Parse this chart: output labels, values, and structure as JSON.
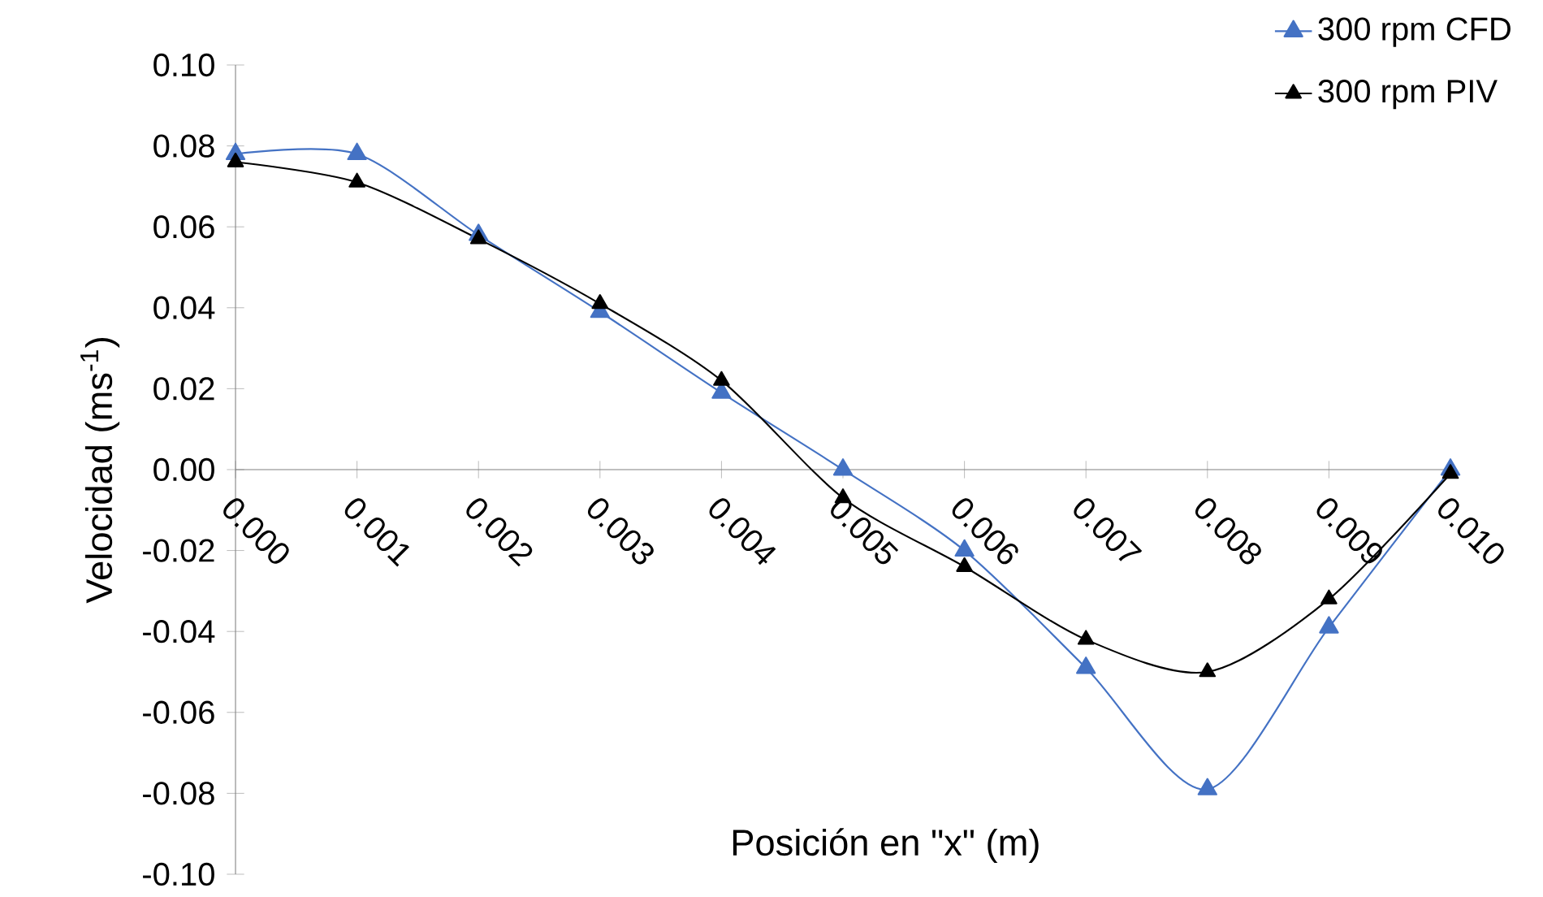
{
  "chart_data": {
    "type": "line",
    "xlabel": "Posición en \"x\" (m)",
    "ylabel": "Velocidad (ms$^{-1}$)",
    "x": [
      0.0,
      0.001,
      0.002,
      0.003,
      0.004,
      0.005,
      0.006,
      0.007,
      0.008,
      0.009,
      0.01
    ],
    "series": [
      {
        "name": "300 rpm CFD",
        "color": "#4472c4",
        "values": [
          0.078,
          0.078,
          0.058,
          0.039,
          0.019,
          0.0,
          -0.02,
          -0.049,
          -0.079,
          -0.039,
          0.0
        ]
      },
      {
        "name": "300 rpm PIV",
        "color": "#000000",
        "values": [
          0.076,
          0.071,
          0.057,
          0.041,
          0.022,
          -0.007,
          -0.024,
          -0.042,
          -0.05,
          -0.032,
          -0.001
        ]
      }
    ],
    "xlim": [
      0.0,
      0.01
    ],
    "xticks": [
      {
        "value": 0.0,
        "label": "0.000"
      },
      {
        "value": 0.001,
        "label": "0.001"
      },
      {
        "value": 0.002,
        "label": "0.002"
      },
      {
        "value": 0.003,
        "label": "0.003"
      },
      {
        "value": 0.004,
        "label": "0.004"
      },
      {
        "value": 0.005,
        "label": "0.005"
      },
      {
        "value": 0.006,
        "label": "0.006"
      },
      {
        "value": 0.007,
        "label": "0.007"
      },
      {
        "value": 0.008,
        "label": "0.008"
      },
      {
        "value": 0.009,
        "label": "0.009"
      },
      {
        "value": 0.01,
        "label": "0.010"
      }
    ],
    "ylim": [
      -0.1,
      0.1
    ],
    "yticks": [
      {
        "value": -0.1,
        "label": "-0.10"
      },
      {
        "value": -0.08,
        "label": "-0.08"
      },
      {
        "value": -0.06,
        "label": "-0.06"
      },
      {
        "value": -0.04,
        "label": "-0.04"
      },
      {
        "value": -0.02,
        "label": "-0.02"
      },
      {
        "value": 0.0,
        "label": "0.00"
      },
      {
        "value": 0.02,
        "label": "0.02"
      },
      {
        "value": 0.04,
        "label": "0.04"
      },
      {
        "value": 0.06,
        "label": "0.06"
      },
      {
        "value": 0.08,
        "label": "0.08"
      },
      {
        "value": 0.1,
        "label": "0.10"
      }
    ],
    "legend": "top right",
    "marker": "triangle",
    "line_style": "solid"
  }
}
